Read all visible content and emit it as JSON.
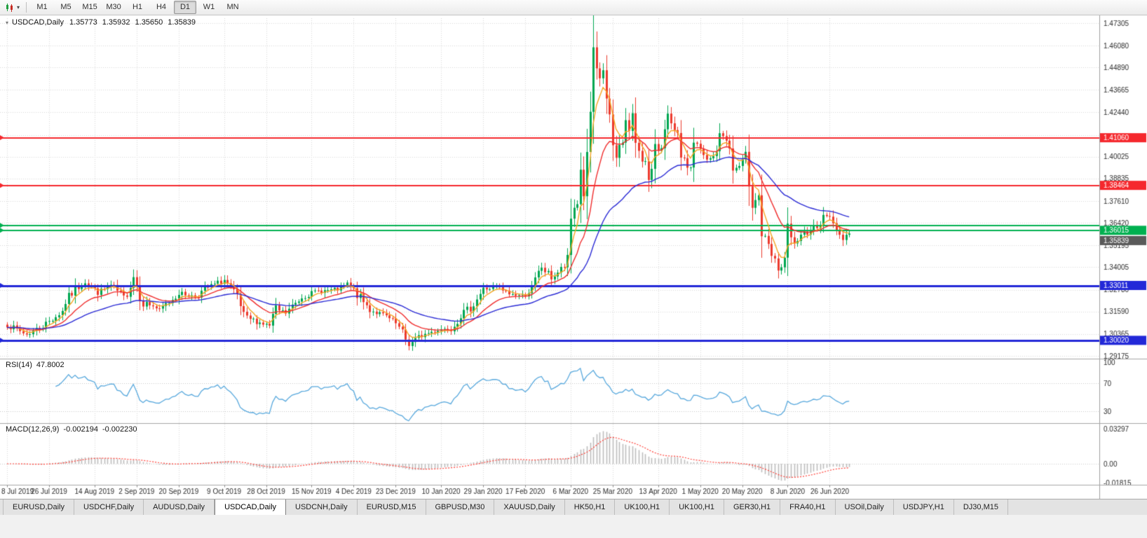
{
  "toolbar": {
    "timeframes": [
      "M1",
      "M5",
      "M15",
      "M30",
      "H1",
      "H4",
      "D1",
      "W1",
      "MN"
    ],
    "active_timeframe": "D1",
    "chart_type_icon": "candlestick-chart-icon"
  },
  "chart_header": {
    "symbol": "USDCAD,Daily",
    "open": "1.35773",
    "high": "1.35932",
    "low": "1.35650",
    "close": "1.35839"
  },
  "chart_data": {
    "type": "candlestick",
    "symbol": "USDCAD",
    "timeframe": "Daily",
    "grid_color": "#d9d9d9",
    "y_ticks": [
      1.47305,
      1.4608,
      1.4489,
      1.43665,
      1.4244,
      1.41215,
      1.40025,
      1.38835,
      1.3761,
      1.3642,
      1.35195,
      1.34005,
      1.3278,
      1.3159,
      1.30365,
      1.29175
    ],
    "x_labels": [
      "8 Jul 2019",
      "26 Jul 2019",
      "14 Aug 2019",
      "2 Sep 2019",
      "20 Sep 2019",
      "9 Oct 2019",
      "28 Oct 2019",
      "15 Nov 2019",
      "4 Dec 2019",
      "23 Dec 2019",
      "10 Jan 2020",
      "29 Jan 2020",
      "17 Feb 2020",
      "6 Mar 2020",
      "25 Mar 2020",
      "13 Apr 2020",
      "1 May 2020",
      "20 May 2020",
      "8 Jun 2020",
      "26 Jun 2020"
    ],
    "hlines": [
      {
        "price": 1.4106,
        "color": "#f5282d",
        "width": 2,
        "label": "1.41060"
      },
      {
        "price": 1.38464,
        "color": "#f5282d",
        "width": 2,
        "label": "1.38464"
      },
      {
        "price": 1.3628,
        "color": "#00b050",
        "width": 2,
        "label": null
      },
      {
        "price": 1.36015,
        "color": "#00b050",
        "width": 2,
        "label": "1.36015"
      },
      {
        "price": 1.33011,
        "color": "#2228d8",
        "width": 3,
        "label": "1.33011"
      },
      {
        "price": 1.3002,
        "color": "#2228d8",
        "width": 3,
        "label": "1.30020"
      }
    ],
    "current_price": {
      "value": "1.35839",
      "box_color": "#5a5a5a"
    },
    "candles": {
      "count": 261,
      "up_color": "#00a651",
      "down_color": "#ec3a2d",
      "last_close": 1.35839,
      "anchors": [
        [
          0,
          1.3085
        ],
        [
          6,
          1.3035
        ],
        [
          11,
          1.308
        ],
        [
          17,
          1.316
        ],
        [
          18,
          1.3215
        ],
        [
          21,
          1.328
        ],
        [
          24,
          1.332
        ],
        [
          28,
          1.326
        ],
        [
          32,
          1.33
        ],
        [
          36,
          1.3235
        ],
        [
          39,
          1.335
        ],
        [
          42,
          1.321
        ],
        [
          45,
          1.319
        ],
        [
          47,
          1.3165
        ],
        [
          53,
          1.326
        ],
        [
          58,
          1.324
        ],
        [
          62,
          1.329
        ],
        [
          67,
          1.333
        ],
        [
          71,
          1.323
        ],
        [
          73,
          1.313
        ],
        [
          81,
          1.308
        ],
        [
          83,
          1.317
        ],
        [
          86,
          1.315
        ],
        [
          91,
          1.324
        ],
        [
          96,
          1.327
        ],
        [
          103,
          1.328
        ],
        [
          105,
          1.331
        ],
        [
          108,
          1.325
        ],
        [
          112,
          1.317
        ],
        [
          117,
          1.313
        ],
        [
          120,
          1.309
        ],
        [
          124,
          1.298
        ],
        [
          125,
          1.299
        ],
        [
          128,
          1.303
        ],
        [
          133,
          1.306
        ],
        [
          137,
          1.307
        ],
        [
          140,
          1.314
        ],
        [
          143,
          1.318
        ],
        [
          147,
          1.328
        ],
        [
          151,
          1.329
        ],
        [
          155,
          1.3255
        ],
        [
          159,
          1.3245
        ],
        [
          162,
          1.328
        ],
        [
          165,
          1.34
        ],
        [
          168,
          1.334
        ],
        [
          173,
          1.342
        ],
        [
          174,
          1.366
        ],
        [
          175,
          1.373
        ],
        [
          176,
          1.376
        ],
        [
          177,
          1.393
        ],
        [
          178,
          1.38
        ],
        [
          179,
          1.399
        ],
        [
          180,
          1.424
        ],
        [
          181,
          1.455
        ],
        [
          182,
          1.445
        ],
        [
          183,
          1.443
        ],
        [
          184,
          1.448
        ],
        [
          185,
          1.43
        ],
        [
          186,
          1.419
        ],
        [
          187,
          1.406
        ],
        [
          188,
          1.399
        ],
        [
          189,
          1.409
        ],
        [
          190,
          1.406
        ],
        [
          191,
          1.421
        ],
        [
          192,
          1.414
        ],
        [
          193,
          1.422
        ],
        [
          194,
          1.409
        ],
        [
          196,
          1.401
        ],
        [
          197,
          1.396
        ],
        [
          198,
          1.386
        ],
        [
          199,
          1.389
        ],
        [
          200,
          1.409
        ],
        [
          201,
          1.404
        ],
        [
          203,
          1.413
        ],
        [
          204,
          1.422
        ],
        [
          205,
          1.416
        ],
        [
          207,
          1.409
        ],
        [
          209,
          1.396
        ],
        [
          211,
          1.394
        ],
        [
          212,
          1.409
        ],
        [
          214,
          1.403
        ],
        [
          216,
          1.398
        ],
        [
          218,
          1.4
        ],
        [
          220,
          1.411
        ],
        [
          222,
          1.412
        ],
        [
          224,
          1.393
        ],
        [
          226,
          1.395
        ],
        [
          228,
          1.399
        ],
        [
          230,
          1.376
        ],
        [
          232,
          1.379
        ],
        [
          233,
          1.358
        ],
        [
          235,
          1.35
        ],
        [
          237,
          1.342
        ],
        [
          238,
          1.339
        ],
        [
          240,
          1.341
        ],
        [
          241,
          1.362
        ],
        [
          242,
          1.354
        ],
        [
          244,
          1.353
        ],
        [
          247,
          1.36
        ],
        [
          250,
          1.363
        ],
        [
          253,
          1.3685
        ],
        [
          255,
          1.366
        ],
        [
          256,
          1.358
        ],
        [
          258,
          1.356
        ],
        [
          259,
          1.3577
        ],
        [
          260,
          1.35839
        ]
      ],
      "spikes": [
        [
          181,
          1.462
        ],
        [
          182,
          1.4685
        ]
      ]
    },
    "ma_lines": [
      {
        "name": "fast-ma",
        "type": "ema",
        "period": 5,
        "color": "#f5a623"
      },
      {
        "name": "mid-ma",
        "type": "ema",
        "period": 15,
        "color": "#f02d2d"
      },
      {
        "name": "slow-ma",
        "type": "ema",
        "period": 40,
        "color": "#2b2bd5"
      }
    ]
  },
  "rsi_panel": {
    "label": "RSI(14)",
    "value": "47.8002",
    "ticks": [
      100,
      70,
      30
    ],
    "levels": [
      70,
      30
    ],
    "line_color": "#57a8dd"
  },
  "macd_panel": {
    "label": "MACD(12,26,9)",
    "value_main": "-0.002194",
    "value_signal": "-0.002230",
    "ticks": [
      {
        "v": 0.03297,
        "t": "0.03297"
      },
      {
        "v": 0,
        "t": "0.00"
      },
      {
        "v": -0.01815,
        "t": "-0.01815"
      }
    ],
    "hist_color": "#bdbdbd",
    "signal_color": "#ff4038"
  },
  "bottom_tabs": {
    "tabs": [
      "EURUSD,Daily",
      "USDCHF,Daily",
      "AUDUSD,Daily",
      "USDCAD,Daily",
      "USDCNH,Daily",
      "EURUSD,M15",
      "GBPUSD,M30",
      "XAUUSD,Daily",
      "HK50,H1",
      "UK100,H1",
      "UK100,H1",
      "GER30,H1",
      "FRA40,H1",
      "USOil,Daily",
      "USDJPY,H1",
      "DJ30,M15"
    ],
    "active": "USDCAD,Daily"
  }
}
